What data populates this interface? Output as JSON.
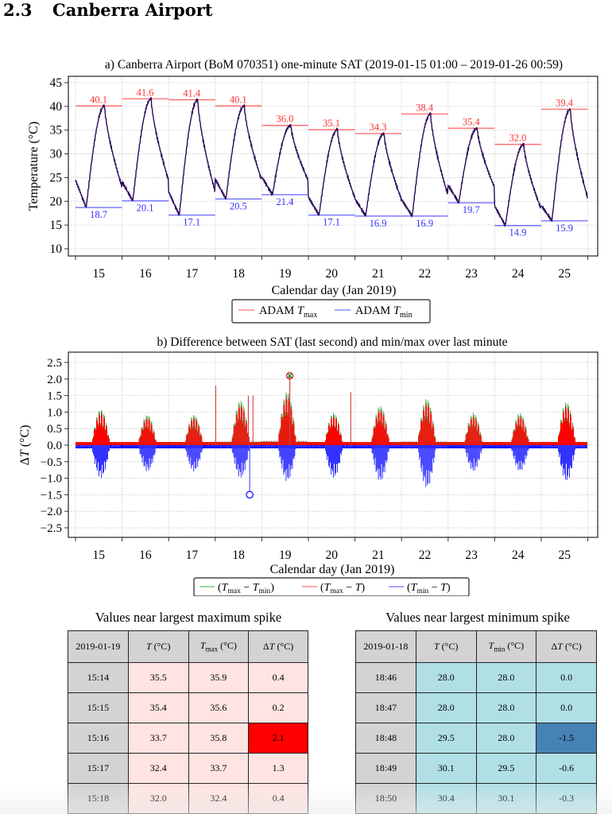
{
  "section": {
    "number": "2.3",
    "title": "Canberra Airport"
  },
  "chart_data": [
    {
      "type": "line",
      "title": "a) Canberra Airport (BoM 070351) one-minute SAT (2019-01-15 01:00 – 2019-01-26 00:59)",
      "xlabel": "Calendar day (Jan 2019)",
      "ylabel": "Temperature (°C)",
      "xlim": [
        14.5,
        25.55
      ],
      "ylim": [
        9,
        46.5
      ],
      "yticks": [
        10,
        15,
        20,
        25,
        30,
        35,
        40,
        45
      ],
      "xticks": [
        15,
        16,
        17,
        18,
        19,
        20,
        21,
        22,
        23,
        24,
        25
      ],
      "grid": true,
      "legend": {
        "placement": "below",
        "entries": [
          {
            "label": "ADAM T",
            "sub": "max",
            "color": "#ff6666"
          },
          {
            "label": "ADAM T",
            "sub": "min",
            "color": "#6666ff"
          }
        ]
      },
      "days": [
        15,
        16,
        17,
        18,
        19,
        20,
        21,
        22,
        23,
        24,
        25
      ],
      "tmax": [
        40.1,
        41.6,
        41.4,
        40.1,
        36.0,
        35.1,
        34.3,
        38.4,
        35.4,
        32.0,
        39.4
      ],
      "tmin": [
        18.7,
        20.1,
        17.1,
        20.5,
        21.4,
        17.1,
        16.9,
        16.9,
        19.7,
        14.9,
        15.9
      ],
      "series_color": "#2a0a5a",
      "tmax_color": "#ff3333",
      "tmin_color": "#3333ff"
    },
    {
      "type": "bar",
      "title": "b) Difference between SAT (last second) and min/max over last minute",
      "xlabel": "Calendar day (Jan 2019)",
      "ylabel": "ΔT (°C)",
      "xlim": [
        14.5,
        25.55
      ],
      "ylim": [
        -2.7,
        2.75
      ],
      "yticks": [
        -2.5,
        -2.0,
        -1.5,
        -1.0,
        -0.5,
        0.0,
        0.5,
        1.0,
        1.5,
        2.0,
        2.5
      ],
      "ytick_labels": [
        "−2.5",
        "−2.0",
        "−1.5",
        "−1.0",
        "−0.5",
        "0.0",
        "0.5",
        "1.0",
        "1.5",
        "2.0",
        "2.5"
      ],
      "xticks": [
        15,
        16,
        17,
        18,
        19,
        20,
        21,
        22,
        23,
        24,
        25
      ],
      "grid": true,
      "legend": {
        "placement": "below",
        "entries": [
          {
            "label": "(Tmax − Tmin)",
            "color": "#66bb66"
          },
          {
            "label": "(Tmax − T)",
            "color": "#ff6666"
          },
          {
            "label": "(Tmin − T)",
            "color": "#6666ff"
          }
        ]
      },
      "daily_envelope_max": [
        1.0,
        0.85,
        0.85,
        1.25,
        1.5,
        0.9,
        1.1,
        1.3,
        0.9,
        0.9,
        1.2
      ],
      "daily_envelope_min": [
        -1.0,
        -0.8,
        -0.8,
        -1.0,
        -1.1,
        -1.0,
        -1.1,
        -1.3,
        -0.8,
        -0.8,
        -1.1
      ],
      "other_spikes": [
        {
          "x": 17.55,
          "y": 1.8
        },
        {
          "x": 18.25,
          "y": 1.5
        },
        {
          "x": 18.35,
          "y": 1.5
        },
        {
          "x": 20.45,
          "y": 1.6
        }
      ],
      "max_spike": {
        "x": 19.14,
        "y": 2.1
      },
      "min_spike": {
        "x": 18.28,
        "y": -1.5
      }
    }
  ],
  "tables": {
    "max_spike": {
      "title": "Values near largest maximum spike",
      "headers": [
        "2019-01-19",
        "T (°C)",
        "Tmax (°C)",
        "ΔT (°C)"
      ],
      "rows": [
        [
          "15:14",
          "35.5",
          "35.9",
          "0.4"
        ],
        [
          "15:15",
          "35.4",
          "35.6",
          "0.2"
        ],
        [
          "15:16",
          "33.7",
          "35.8",
          "2.1"
        ],
        [
          "15:17",
          "32.4",
          "33.7",
          "1.3"
        ],
        [
          "15:18",
          "32.0",
          "32.4",
          "0.4"
        ]
      ],
      "highlight_row": 2,
      "cell_color": "#ffe4e1",
      "highlight_color": "#ff0000"
    },
    "min_spike": {
      "title": "Values near largest minimum spike",
      "headers": [
        "2019-01-18",
        "T (°C)",
        "Tmin (°C)",
        "ΔT (°C)"
      ],
      "rows": [
        [
          "18:46",
          "28.0",
          "28.0",
          "0.0"
        ],
        [
          "18:47",
          "28.0",
          "28.0",
          "0.0"
        ],
        [
          "18:48",
          "29.5",
          "28.0",
          "-1.5"
        ],
        [
          "18:49",
          "30.1",
          "29.5",
          "-0.6"
        ],
        [
          "18:50",
          "30.4",
          "30.1",
          "-0.3"
        ]
      ],
      "highlight_row": 2,
      "cell_color": "#b0e0e6",
      "highlight_color": "#4682b4"
    }
  }
}
